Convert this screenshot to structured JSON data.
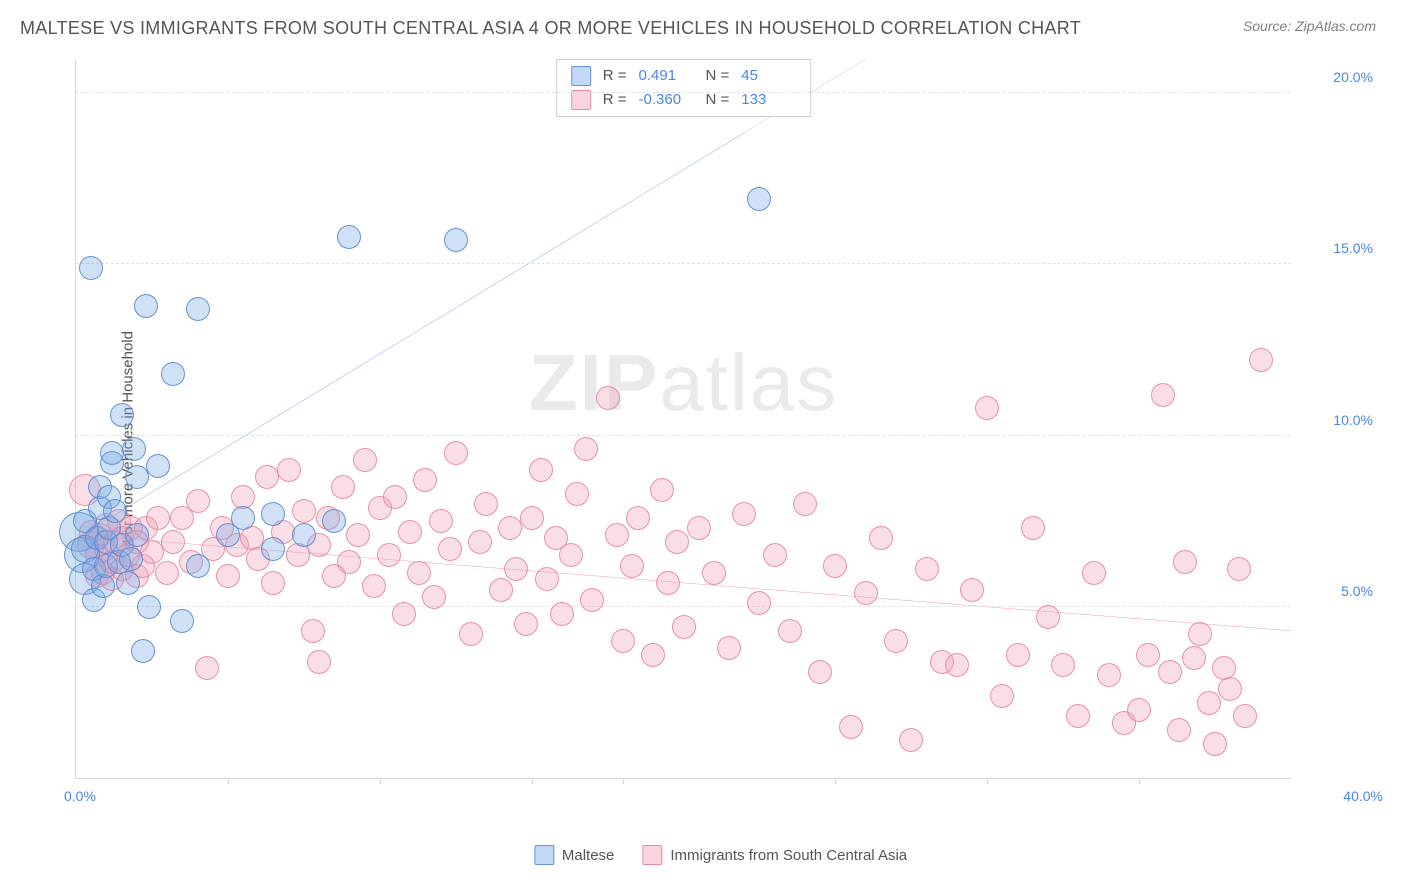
{
  "header": {
    "title": "MALTESE VS IMMIGRANTS FROM SOUTH CENTRAL ASIA 4 OR MORE VEHICLES IN HOUSEHOLD CORRELATION CHART",
    "source": "Source: ZipAtlas.com"
  },
  "ylabel": "4 or more Vehicles in Household",
  "watermark": {
    "pre": "ZIP",
    "post": "atlas"
  },
  "chart": {
    "type": "scatter",
    "xlim": [
      0,
      40
    ],
    "ylim": [
      0,
      21
    ],
    "x_origin_label": "0.0%",
    "x_max_label": "40.0%",
    "x_ticks": [
      5,
      10,
      15,
      18,
      25,
      30,
      35
    ],
    "y_ticks": [
      {
        "v": 5,
        "label": "5.0%"
      },
      {
        "v": 10,
        "label": "10.0%"
      },
      {
        "v": 15,
        "label": "15.0%"
      },
      {
        "v": 20,
        "label": "20.0%"
      }
    ],
    "grid_color": "#e2e2e2",
    "axis_color": "#d8d8d8",
    "background_color": "#ffffff",
    "point_radius": 9,
    "series": {
      "blue": {
        "name": "Maltese",
        "fill": "rgba(120,168,230,0.35)",
        "stroke": "rgba(90,140,210,0.9)",
        "trend_color": "#3b78d8",
        "trend": {
          "x1": 0,
          "y1": 7.0,
          "x2": 26,
          "y2": 21,
          "dashed_from_x": 22
        },
        "r": 0.491,
        "n": 45,
        "points": [
          [
            0.1,
            7.2,
            20
          ],
          [
            0.2,
            6.5,
            18
          ],
          [
            0.3,
            5.8,
            16
          ],
          [
            0.3,
            6.7,
            14
          ],
          [
            0.3,
            7.5,
            12
          ],
          [
            0.5,
            14.9,
            12
          ],
          [
            0.6,
            5.2,
            12
          ],
          [
            0.6,
            6.1,
            12
          ],
          [
            0.7,
            7.0,
            12
          ],
          [
            0.8,
            7.9,
            12
          ],
          [
            0.8,
            8.5,
            12
          ],
          [
            0.9,
            5.6,
            12
          ],
          [
            1.0,
            6.2,
            12
          ],
          [
            1.0,
            6.9,
            12
          ],
          [
            1.1,
            7.3,
            12
          ],
          [
            1.1,
            8.2,
            12
          ],
          [
            1.2,
            9.2,
            12
          ],
          [
            1.2,
            9.5,
            12
          ],
          [
            1.3,
            7.8,
            12
          ],
          [
            1.4,
            6.3,
            12
          ],
          [
            1.5,
            6.8,
            12
          ],
          [
            1.5,
            10.6,
            12
          ],
          [
            1.7,
            5.7,
            12
          ],
          [
            1.8,
            6.4,
            12
          ],
          [
            1.9,
            9.6,
            12
          ],
          [
            2.0,
            7.1,
            12
          ],
          [
            2.0,
            8.8,
            12
          ],
          [
            2.2,
            3.7,
            12
          ],
          [
            2.3,
            13.8,
            12
          ],
          [
            2.4,
            5.0,
            12
          ],
          [
            2.7,
            9.1,
            12
          ],
          [
            3.2,
            11.8,
            12
          ],
          [
            3.5,
            4.6,
            12
          ],
          [
            4.0,
            6.2,
            12
          ],
          [
            4.0,
            13.7,
            12
          ],
          [
            5.0,
            7.1,
            12
          ],
          [
            5.5,
            7.6,
            12
          ],
          [
            6.5,
            6.7,
            12
          ],
          [
            6.5,
            7.7,
            12
          ],
          [
            7.5,
            7.1,
            12
          ],
          [
            8.5,
            7.5,
            12
          ],
          [
            9.0,
            15.8,
            12
          ],
          [
            12.5,
            15.7,
            12
          ],
          [
            22.5,
            16.9,
            12
          ]
        ]
      },
      "pink": {
        "name": "Immigrants from South Central Asia",
        "fill": "rgba(240,160,180,0.35)",
        "stroke": "rgba(230,130,160,0.85)",
        "trend_color": "#e86b8f",
        "trend": {
          "x1": 0,
          "y1": 7.1,
          "x2": 40,
          "y2": 4.3
        },
        "r": -0.36,
        "n": 133,
        "points": [
          [
            0.3,
            8.4,
            16
          ],
          [
            0.5,
            6.8,
            14
          ],
          [
            0.5,
            7.2,
            12
          ],
          [
            0.7,
            5.9,
            12
          ],
          [
            0.7,
            6.5,
            12
          ],
          [
            0.8,
            7.1,
            12
          ],
          [
            0.9,
            6.0,
            12
          ],
          [
            1.0,
            6.7,
            12
          ],
          [
            1.0,
            7.4,
            12
          ],
          [
            1.2,
            5.8,
            12
          ],
          [
            1.2,
            6.3,
            12
          ],
          [
            1.3,
            6.9,
            12
          ],
          [
            1.4,
            7.5,
            12
          ],
          [
            1.5,
            6.1,
            12
          ],
          [
            1.5,
            7.0,
            12
          ],
          [
            1.7,
            6.5,
            12
          ],
          [
            1.8,
            7.3,
            12
          ],
          [
            2.0,
            5.9,
            12
          ],
          [
            2.0,
            6.9,
            12
          ],
          [
            2.2,
            6.2,
            12
          ],
          [
            2.3,
            7.3,
            12
          ],
          [
            2.5,
            6.6,
            12
          ],
          [
            2.7,
            7.6,
            12
          ],
          [
            3.0,
            6.0,
            12
          ],
          [
            3.2,
            6.9,
            12
          ],
          [
            3.5,
            7.6,
            12
          ],
          [
            3.8,
            6.3,
            12
          ],
          [
            4.0,
            8.1,
            12
          ],
          [
            4.3,
            3.2,
            12
          ],
          [
            4.5,
            6.7,
            12
          ],
          [
            4.8,
            7.3,
            12
          ],
          [
            5.0,
            5.9,
            12
          ],
          [
            5.3,
            6.8,
            12
          ],
          [
            5.5,
            8.2,
            12
          ],
          [
            5.8,
            7.0,
            12
          ],
          [
            6.0,
            6.4,
            12
          ],
          [
            6.3,
            8.8,
            12
          ],
          [
            6.5,
            5.7,
            12
          ],
          [
            6.8,
            7.2,
            12
          ],
          [
            7.0,
            9.0,
            12
          ],
          [
            7.3,
            6.5,
            12
          ],
          [
            7.5,
            7.8,
            12
          ],
          [
            7.8,
            4.3,
            12
          ],
          [
            8.0,
            3.4,
            12
          ],
          [
            8.0,
            6.8,
            12
          ],
          [
            8.3,
            7.6,
            12
          ],
          [
            8.5,
            5.9,
            12
          ],
          [
            8.8,
            8.5,
            12
          ],
          [
            9.0,
            6.3,
            12
          ],
          [
            9.3,
            7.1,
            12
          ],
          [
            9.5,
            9.3,
            12
          ],
          [
            9.8,
            5.6,
            12
          ],
          [
            10.0,
            7.9,
            12
          ],
          [
            10.3,
            6.5,
            12
          ],
          [
            10.5,
            8.2,
            12
          ],
          [
            10.8,
            4.8,
            12
          ],
          [
            11.0,
            7.2,
            12
          ],
          [
            11.3,
            6.0,
            12
          ],
          [
            11.5,
            8.7,
            12
          ],
          [
            11.8,
            5.3,
            12
          ],
          [
            12.0,
            7.5,
            12
          ],
          [
            12.3,
            6.7,
            12
          ],
          [
            12.5,
            9.5,
            12
          ],
          [
            13.0,
            4.2,
            12
          ],
          [
            13.3,
            6.9,
            12
          ],
          [
            13.5,
            8.0,
            12
          ],
          [
            14.0,
            5.5,
            12
          ],
          [
            14.3,
            7.3,
            12
          ],
          [
            14.5,
            6.1,
            12
          ],
          [
            14.8,
            4.5,
            12
          ],
          [
            15.0,
            7.6,
            12
          ],
          [
            15.3,
            9.0,
            12
          ],
          [
            15.5,
            5.8,
            12
          ],
          [
            15.8,
            7.0,
            12
          ],
          [
            16.0,
            4.8,
            12
          ],
          [
            16.3,
            6.5,
            12
          ],
          [
            16.5,
            8.3,
            12
          ],
          [
            16.8,
            9.6,
            12
          ],
          [
            17.0,
            5.2,
            12
          ],
          [
            17.5,
            11.1,
            12
          ],
          [
            17.8,
            7.1,
            12
          ],
          [
            18.0,
            4.0,
            12
          ],
          [
            18.3,
            6.2,
            12
          ],
          [
            18.5,
            7.6,
            12
          ],
          [
            19.0,
            3.6,
            12
          ],
          [
            19.3,
            8.4,
            12
          ],
          [
            19.5,
            5.7,
            12
          ],
          [
            19.8,
            6.9,
            12
          ],
          [
            20.0,
            4.4,
            12
          ],
          [
            20.5,
            7.3,
            12
          ],
          [
            21.0,
            6.0,
            12
          ],
          [
            21.5,
            3.8,
            12
          ],
          [
            22.0,
            7.7,
            12
          ],
          [
            22.5,
            5.1,
            12
          ],
          [
            23.0,
            6.5,
            12
          ],
          [
            23.5,
            4.3,
            12
          ],
          [
            24.0,
            8.0,
            12
          ],
          [
            24.5,
            3.1,
            12
          ],
          [
            25.0,
            6.2,
            12
          ],
          [
            25.5,
            1.5,
            12
          ],
          [
            26.0,
            5.4,
            12
          ],
          [
            26.5,
            7.0,
            12
          ],
          [
            27.0,
            4.0,
            12
          ],
          [
            27.5,
            1.1,
            12
          ],
          [
            28.0,
            6.1,
            12
          ],
          [
            28.5,
            3.4,
            12
          ],
          [
            29.0,
            3.3,
            12
          ],
          [
            29.5,
            5.5,
            12
          ],
          [
            30.0,
            10.8,
            12
          ],
          [
            30.5,
            2.4,
            12
          ],
          [
            31.0,
            3.6,
            12
          ],
          [
            31.5,
            7.3,
            12
          ],
          [
            32.0,
            4.7,
            12
          ],
          [
            32.5,
            3.3,
            12
          ],
          [
            33.0,
            1.8,
            12
          ],
          [
            33.5,
            6.0,
            12
          ],
          [
            34.0,
            3.0,
            12
          ],
          [
            34.5,
            1.6,
            12
          ],
          [
            35.0,
            2.0,
            12
          ],
          [
            35.3,
            3.6,
            12
          ],
          [
            35.8,
            11.2,
            12
          ],
          [
            36.0,
            3.1,
            12
          ],
          [
            36.3,
            1.4,
            12
          ],
          [
            36.5,
            6.3,
            12
          ],
          [
            36.8,
            3.5,
            12
          ],
          [
            37.0,
            4.2,
            12
          ],
          [
            37.3,
            2.2,
            12
          ],
          [
            37.5,
            1.0,
            12
          ],
          [
            37.8,
            3.2,
            12
          ],
          [
            38.0,
            2.6,
            12
          ],
          [
            38.3,
            6.1,
            12
          ],
          [
            38.5,
            1.8,
            12
          ],
          [
            39.0,
            12.2,
            12
          ]
        ]
      }
    }
  },
  "statbox": {
    "r_label": "R =",
    "n_label": "N =",
    "rows": [
      {
        "color": "blue",
        "r": "0.491",
        "n": "45"
      },
      {
        "color": "pink",
        "r": "-0.360",
        "n": "133"
      }
    ]
  }
}
